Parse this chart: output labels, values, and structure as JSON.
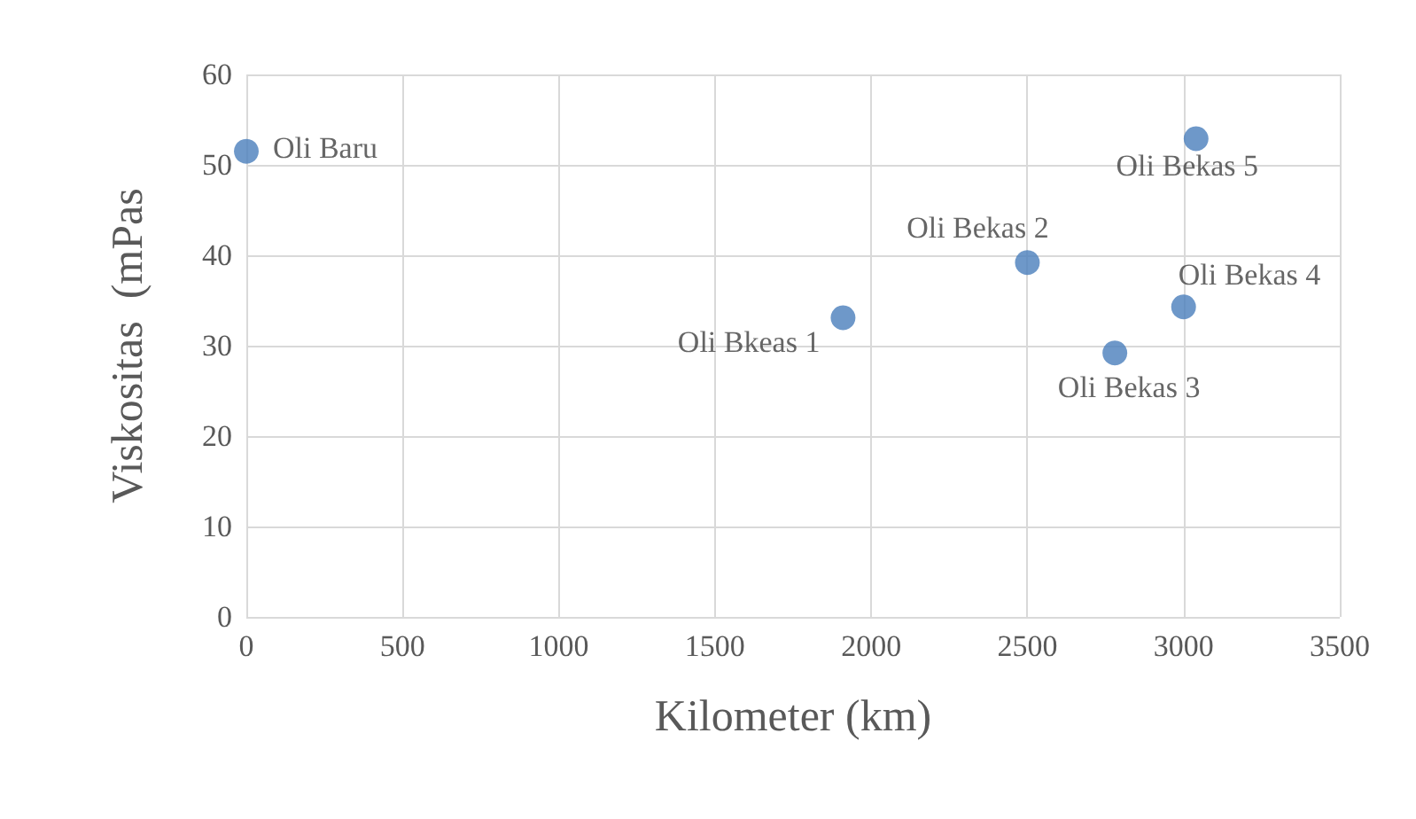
{
  "chart_data": {
    "type": "scatter",
    "xlabel": "Kilometer (km)",
    "ylabel": "Viskositas  (mPas",
    "x": [
      0,
      1910,
      2500,
      2780,
      3000,
      3040
    ],
    "values": [
      51.5,
      33.1,
      39.2,
      29.2,
      34.3,
      52.9
    ],
    "color": "#4a7ebb",
    "marker": "circle",
    "grid": true,
    "xlim": [
      0,
      3500
    ],
    "xticks": [
      0,
      500,
      1000,
      1500,
      2000,
      2500,
      3000,
      3500
    ],
    "ylim": [
      0,
      60
    ],
    "yticks": [
      0,
      10,
      20,
      30,
      40,
      50,
      60
    ],
    "annotations": [
      {
        "text": "Oli Baru",
        "x": 0,
        "y": 51.5
      },
      {
        "text": "Oli Bkeas 1",
        "x": 1910,
        "y": 33.1
      },
      {
        "text": "Oli Bekas 2",
        "x": 2500,
        "y": 39.2
      },
      {
        "text": "Oli Bekas 3",
        "x": 2780,
        "y": 29.2
      },
      {
        "text": "Oli Bekas 4",
        "x": 3000,
        "y": 34.3
      },
      {
        "text": "Oli Bekas 5",
        "x": 3040,
        "y": 52.9
      }
    ]
  }
}
